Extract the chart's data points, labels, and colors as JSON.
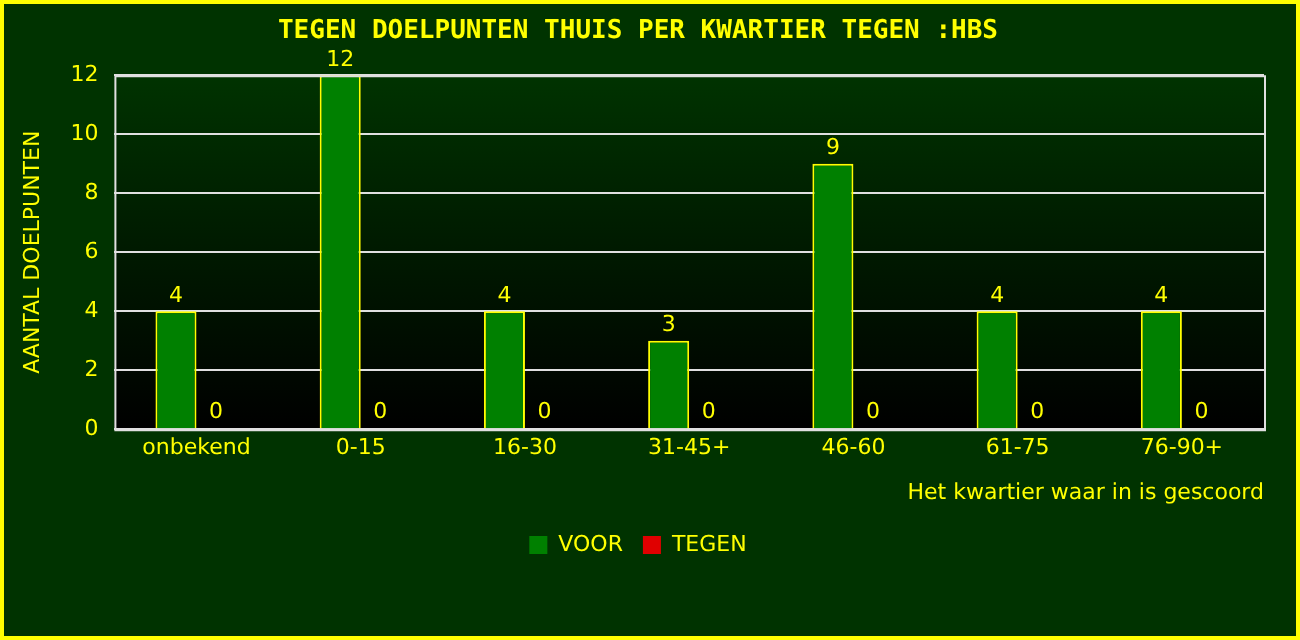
{
  "chart_data": {
    "type": "bar",
    "title": "TEGEN DOELPUNTEN THUIS PER KWARTIER TEGEN :HBS",
    "xlabel": "Het kwartier waar in is gescoord",
    "ylabel": "AANTAL DOELPUNTEN",
    "categories": [
      "onbekend",
      "0-15",
      "16-30",
      "31-45+",
      "46-60",
      "61-75",
      "76-90+"
    ],
    "series": [
      {
        "name": "VOOR",
        "color": "#008000",
        "values": [
          4,
          12,
          4,
          3,
          9,
          4,
          4
        ]
      },
      {
        "name": "TEGEN",
        "color": "#e00000",
        "values": [
          0,
          0,
          0,
          0,
          0,
          0,
          0
        ]
      }
    ],
    "ylim": [
      0,
      12
    ],
    "yticks": [
      0,
      2,
      4,
      6,
      8,
      10,
      12
    ],
    "grid": "y",
    "legend": "bottom",
    "data_labels": true
  }
}
